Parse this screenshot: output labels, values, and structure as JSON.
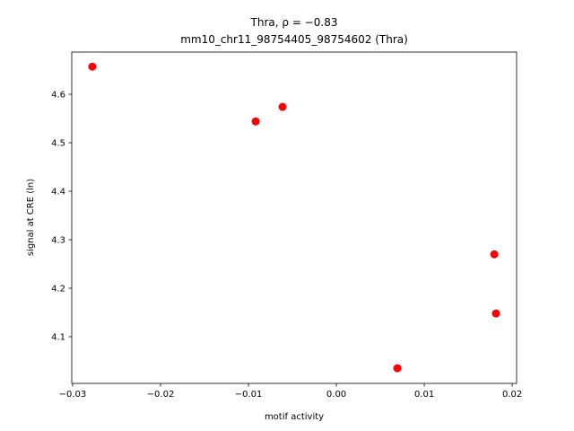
{
  "chart_data": {
    "type": "scatter",
    "title": "Thra, ρ = −0.83",
    "subtitle": "mm10_chr11_98754405_98754602 (Thra)",
    "x_label": "motif activity",
    "y_label": "signal at CRE (ln)",
    "color": "#ff0000",
    "x": [
      -0.02776,
      -0.00918,
      -0.00612,
      0.01796,
      0.01816,
      0.00694
    ],
    "values": [
      4.657,
      4.544,
      4.574,
      4.27,
      4.148,
      4.035
    ],
    "xlim": [
      -0.0301,
      0.0205
    ],
    "ylim": [
      4.0037,
      4.687
    ],
    "xticks": [
      {
        "value": -0.03,
        "label": "−0.03"
      },
      {
        "value": -0.02,
        "label": "−0.02"
      },
      {
        "value": -0.01,
        "label": "−0.01"
      },
      {
        "value": 0,
        "label": "0.00"
      },
      {
        "value": 0.01,
        "label": "0.01"
      },
      {
        "value": 0.02,
        "label": "0.02"
      }
    ],
    "yticks": [
      4.1,
      4.2,
      4.3,
      4.4,
      4.5,
      4.6
    ],
    "grid": false
  }
}
